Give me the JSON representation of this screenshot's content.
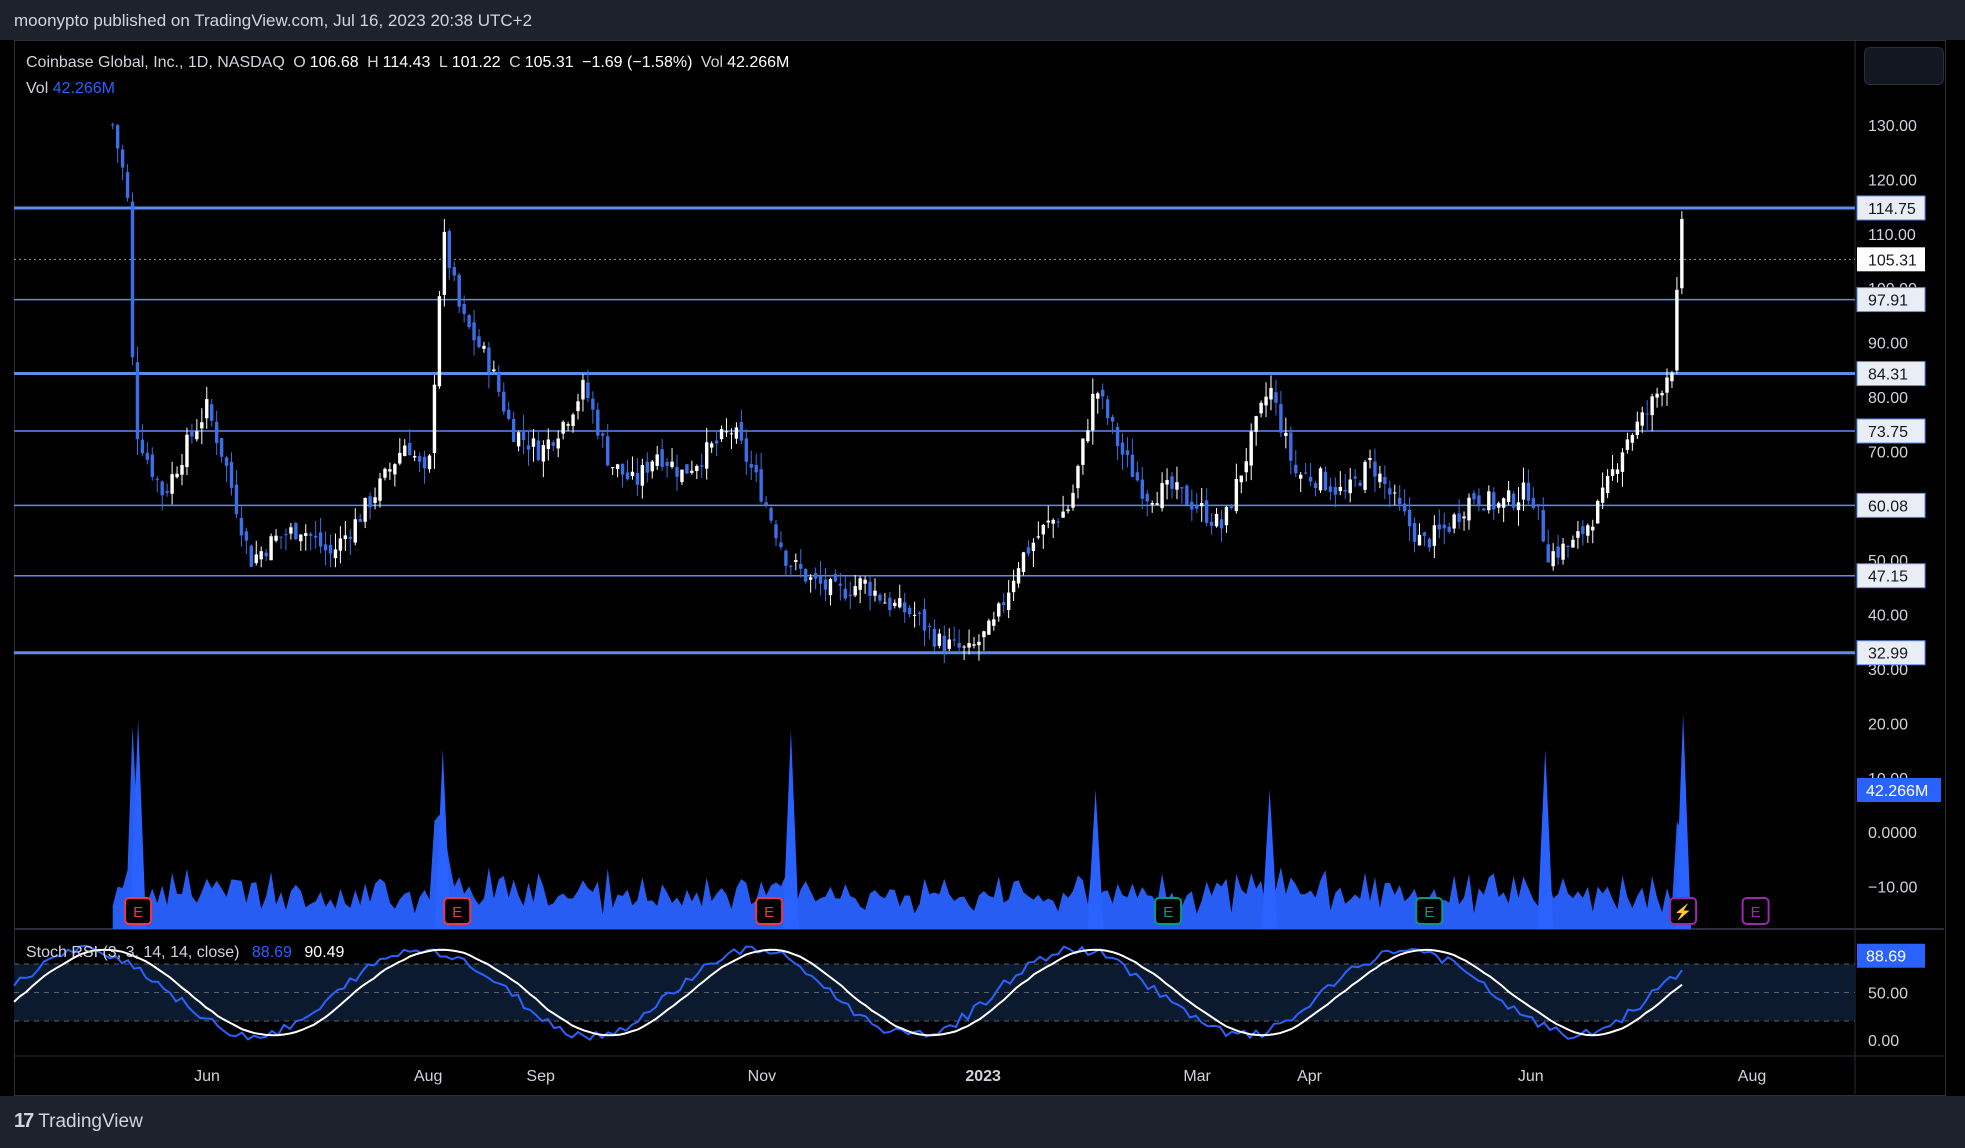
{
  "header": {
    "published": "moonypto published on TradingView.com, Jul 16, 2023 20:38 UTC+2"
  },
  "legend": {
    "symbol": "Coinbase Global, Inc., 1D, NASDAQ",
    "o_label": "O",
    "o_value": "106.68",
    "h_label": "H",
    "h_value": "114.43",
    "l_label": "L",
    "l_value": "101.22",
    "c_label": "C",
    "c_value": "105.31",
    "change": "−1.69 (−1.58%)",
    "vol_label": "Vol",
    "vol_value": "42.266M"
  },
  "vol_legend": {
    "label": "Vol",
    "value": "42.266M"
  },
  "stoch_legend": {
    "label": "Stoch RSI (3, 3, 14, 14, close)",
    "k": "88.69",
    "d": "90.49"
  },
  "footer": {
    "brand": "TradingView"
  },
  "colors": {
    "accent": "#2962ff",
    "level_line": "#5b8def",
    "candle_up": "#ffffff",
    "candle_down": "#3b6fe8",
    "earnings_red": "#f23645",
    "earnings_green": "#089981",
    "dividend_purple": "#9c27b0"
  },
  "chart_data": {
    "type": "candlestick",
    "title": "Coinbase Global, Inc., 1D, NASDAQ",
    "price_axis_ticks": [
      "130.00",
      "120.00",
      "110.00",
      "100.00",
      "90.00",
      "80.00",
      "70.00",
      "60.00",
      "50.00",
      "40.00",
      "30.00",
      "20.00",
      "10.00",
      "0.0000",
      "−10.00"
    ],
    "price_ylim": [
      30,
      135
    ],
    "time_axis_labels": [
      {
        "label": "Jun",
        "date": "2022-06-01"
      },
      {
        "label": "Aug",
        "date": "2022-08-01"
      },
      {
        "label": "Sep",
        "date": "2022-09-01"
      },
      {
        "label": "Nov",
        "date": "2022-11-01"
      },
      {
        "label": "2023",
        "date": "2023-01-01"
      },
      {
        "label": "Mar",
        "date": "2023-03-01"
      },
      {
        "label": "Apr",
        "date": "2023-04-01"
      },
      {
        "label": "Jun",
        "date": "2023-06-01"
      },
      {
        "label": "Aug",
        "date": "2023-08-01"
      }
    ],
    "levels": [
      114.75,
      97.91,
      84.31,
      73.75,
      60.08,
      47.15,
      32.99
    ],
    "last_price": 105.31,
    "volume_last": "42.266M",
    "price_path": [
      [
        "2022-05-06",
        130
      ],
      [
        "2022-05-10",
        118
      ],
      [
        "2022-05-12",
        75
      ],
      [
        "2022-05-16",
        68
      ],
      [
        "2022-05-20",
        62
      ],
      [
        "2022-05-27",
        72
      ],
      [
        "2022-06-01",
        78
      ],
      [
        "2022-06-06",
        68
      ],
      [
        "2022-06-13",
        50
      ],
      [
        "2022-06-20",
        54
      ],
      [
        "2022-06-27",
        56
      ],
      [
        "2022-07-05",
        51
      ],
      [
        "2022-07-12",
        57
      ],
      [
        "2022-07-19",
        64
      ],
      [
        "2022-07-26",
        72
      ],
      [
        "2022-08-01",
        64
      ],
      [
        "2022-08-05",
        110
      ],
      [
        "2022-08-10",
        95
      ],
      [
        "2022-08-18",
        86
      ],
      [
        "2022-08-24",
        74
      ],
      [
        "2022-09-01",
        70
      ],
      [
        "2022-09-08",
        76
      ],
      [
        "2022-09-13",
        82
      ],
      [
        "2022-09-20",
        68
      ],
      [
        "2022-09-27",
        64
      ],
      [
        "2022-10-03",
        70
      ],
      [
        "2022-10-10",
        66
      ],
      [
        "2022-10-17",
        70
      ],
      [
        "2022-10-24",
        74
      ],
      [
        "2022-10-31",
        64
      ],
      [
        "2022-11-08",
        50
      ],
      [
        "2022-11-15",
        46
      ],
      [
        "2022-11-22",
        44
      ],
      [
        "2022-11-29",
        46
      ],
      [
        "2022-12-06",
        42
      ],
      [
        "2022-12-13",
        40
      ],
      [
        "2022-12-20",
        35
      ],
      [
        "2022-12-28",
        33
      ],
      [
        "2023-01-04",
        38
      ],
      [
        "2023-01-11",
        50
      ],
      [
        "2023-01-18",
        56
      ],
      [
        "2023-01-25",
        60
      ],
      [
        "2023-02-01",
        82
      ],
      [
        "2023-02-08",
        70
      ],
      [
        "2023-02-15",
        62
      ],
      [
        "2023-02-22",
        63
      ],
      [
        "2023-03-01",
        60
      ],
      [
        "2023-03-08",
        56
      ],
      [
        "2023-03-14",
        68
      ],
      [
        "2023-03-21",
        82
      ],
      [
        "2023-03-28",
        66
      ],
      [
        "2023-04-04",
        65
      ],
      [
        "2023-04-11",
        62
      ],
      [
        "2023-04-18",
        68
      ],
      [
        "2023-04-25",
        60
      ],
      [
        "2023-05-02",
        53
      ],
      [
        "2023-05-09",
        56
      ],
      [
        "2023-05-16",
        62
      ],
      [
        "2023-05-23",
        60
      ],
      [
        "2023-06-01",
        63
      ],
      [
        "2023-06-06",
        51
      ],
      [
        "2023-06-13",
        53
      ],
      [
        "2023-06-20",
        60
      ],
      [
        "2023-06-27",
        72
      ],
      [
        "2023-07-03",
        77
      ],
      [
        "2023-07-10",
        86
      ],
      [
        "2023-07-13",
        114
      ],
      [
        "2023-07-14",
        105.31
      ]
    ],
    "stoch_rsi": {
      "k": 88.69,
      "d": 90.49,
      "ticks": [
        "50.00",
        "0.00"
      ],
      "bands": [
        80,
        50,
        20
      ]
    }
  }
}
